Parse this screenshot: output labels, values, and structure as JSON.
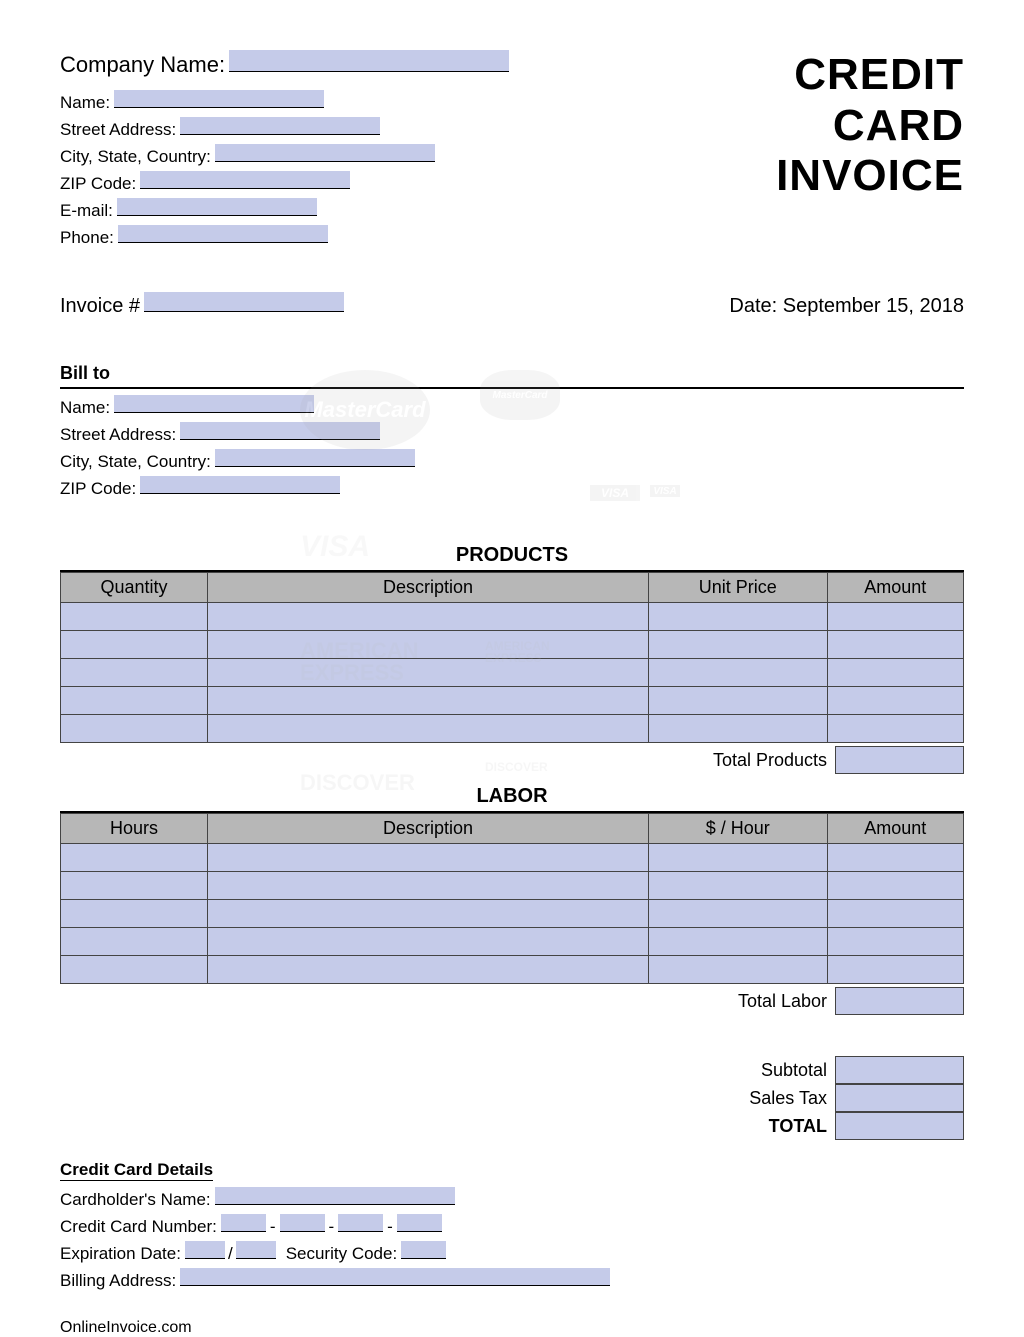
{
  "header": {
    "company_name_label": "Company Name:",
    "name_label": "Name:",
    "street_label": "Street Address:",
    "city_label": "City, State, Country:",
    "zip_label": "ZIP Code:",
    "email_label": "E-mail:",
    "phone_label": "Phone:",
    "title_line1": "CREDIT",
    "title_line2": "CARD",
    "title_line3": "INVOICE"
  },
  "invoice": {
    "number_label": "Invoice #",
    "date_label": "Date:",
    "date_value": "September 15, 2018"
  },
  "bill_to": {
    "heading": "Bill to",
    "name_label": "Name:",
    "street_label": "Street Address:",
    "city_label": "City, State, Country:",
    "zip_label": "ZIP Code:"
  },
  "products": {
    "title": "PRODUCTS",
    "columns": [
      "Quantity",
      "Description",
      "Unit Price",
      "Amount"
    ],
    "row_count": 5,
    "total_label": "Total Products"
  },
  "labor": {
    "title": "LABOR",
    "columns": [
      "Hours",
      "Description",
      "$ / Hour",
      "Amount"
    ],
    "row_count": 5,
    "total_label": "Total Labor"
  },
  "summary": {
    "subtotal": "Subtotal",
    "tax": "Sales Tax",
    "total": "TOTAL"
  },
  "cc": {
    "heading": "Credit Card Details",
    "cardholder_label": "Cardholder's Name:",
    "number_label": "Credit Card Number:",
    "exp_label": "Expiration Date:",
    "sec_label": "Security Code:",
    "billing_label": "Billing Address:"
  },
  "footer": {
    "text": "OnlineInvoice.com"
  },
  "colors": {
    "fill": "#c5cbe9",
    "header_bg": "#b7b7b7",
    "border": "#444444"
  }
}
